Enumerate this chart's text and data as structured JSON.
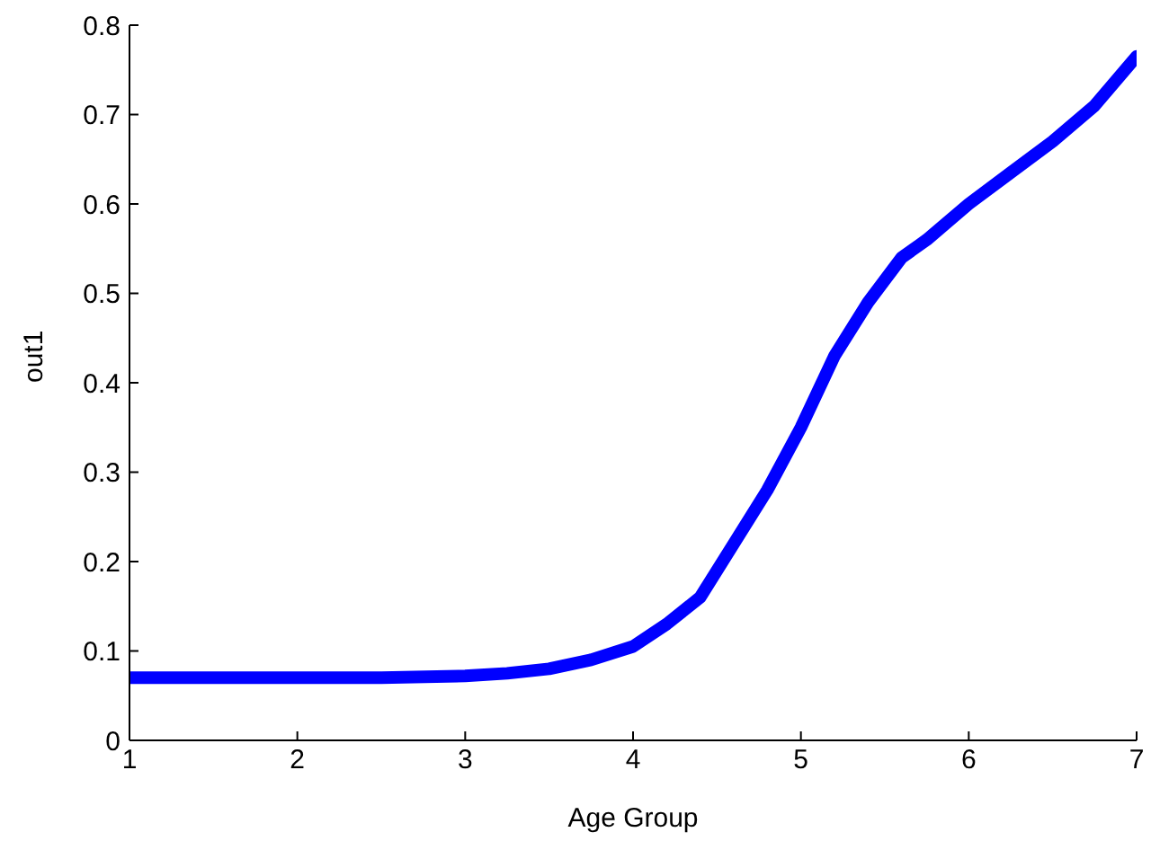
{
  "chart_data": {
    "type": "line",
    "xlabel": "Age Group",
    "ylabel": "out1",
    "x": [
      1,
      1.5,
      2,
      2.5,
      3,
      3.25,
      3.5,
      3.75,
      4,
      4.2,
      4.4,
      4.6,
      4.8,
      5,
      5.2,
      5.4,
      5.6,
      5.75,
      6,
      6.25,
      6.5,
      6.75,
      7
    ],
    "series": [
      {
        "color": "#0000ff",
        "values": [
          0.07,
          0.07,
          0.07,
          0.07,
          0.072,
          0.075,
          0.08,
          0.09,
          0.105,
          0.13,
          0.16,
          0.22,
          0.28,
          0.35,
          0.43,
          0.49,
          0.54,
          0.56,
          0.6,
          0.635,
          0.67,
          0.71,
          0.765
        ]
      }
    ],
    "xlim": [
      1,
      7
    ],
    "xticks": [
      1,
      2,
      3,
      4,
      5,
      6,
      7
    ],
    "ylim": [
      0,
      0.8
    ],
    "yticks": [
      0,
      0.1,
      0.2,
      0.3,
      0.4,
      0.5,
      0.6,
      0.7,
      0.8
    ],
    "grid": false,
    "legend": false,
    "marker": "none",
    "line_style": "solid"
  }
}
